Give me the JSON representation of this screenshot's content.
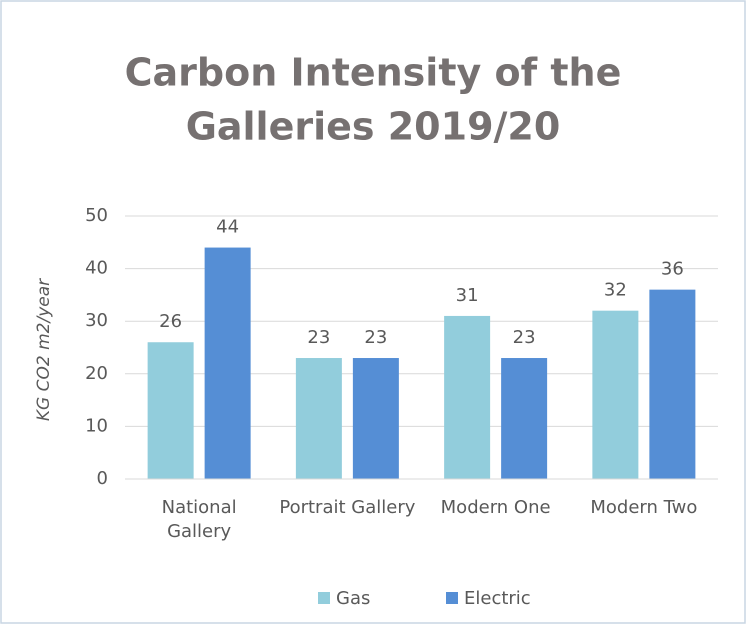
{
  "chart_data": {
    "type": "bar",
    "title": [
      "Carbon Intensity of the",
      "Galleries 2019/20"
    ],
    "y_label": "KG CO2 m2/year",
    "categories": [
      "National Gallery",
      "Portrait Gallery",
      "Modern One",
      "Modern Two"
    ],
    "series": [
      {
        "name": "Gas",
        "color": "#92cddc",
        "values": [
          26,
          23,
          31,
          32
        ]
      },
      {
        "name": "Electric",
        "color": "#558ed5",
        "values": [
          44,
          23,
          23,
          36
        ]
      }
    ],
    "ylim": [
      0,
      50
    ],
    "yticks": [
      0,
      10,
      20,
      30,
      40,
      50
    ],
    "grid": true,
    "legend": "bottom"
  }
}
